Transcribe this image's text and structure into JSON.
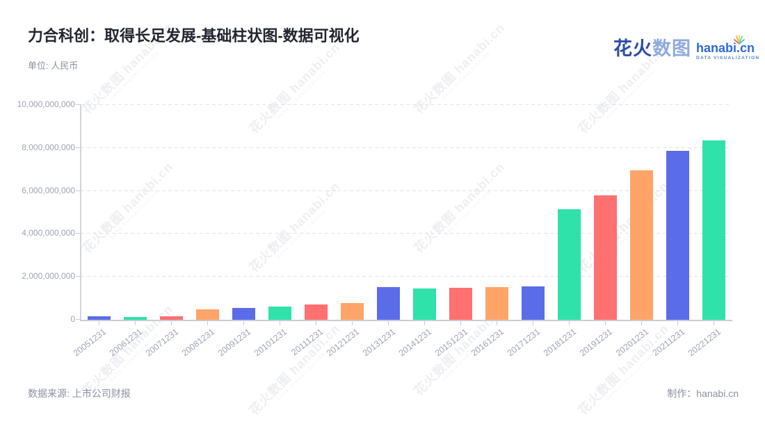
{
  "header": {
    "title": "力合科创：取得长足发展-基础柱状图-数据可视化",
    "unit_label": "单位: 人民币"
  },
  "logo": {
    "brand_cn_primary": "花火",
    "brand_cn_secondary": "数图",
    "brand_en": "hanabi.cn",
    "tagline": "DATA VISUALIZATION"
  },
  "watermark": {
    "text": "花火数图 hanabi.cn",
    "tagline": "DATA VISUALIZATION"
  },
  "footer": {
    "source_label": "数据来源: 上市公司财报",
    "credit_label": "制作：hanabi.cn"
  },
  "colors": {
    "bar_blue": "#5B6CE8",
    "bar_green": "#2EE2A9",
    "bar_red": "#FF7070",
    "bar_orange": "#FFA468",
    "brand_dark_blue": "#2B4DA6",
    "brand_light_blue": "#8FA9DD",
    "brand_en_blue": "#2D6BD9"
  },
  "chart_data": {
    "type": "bar",
    "title": "力合科创：取得长足发展-基础柱状图-数据可视化",
    "unit": "人民币",
    "categories": [
      "20051231",
      "20061231",
      "20071231",
      "20081231",
      "20091231",
      "20101231",
      "20111231",
      "20121231",
      "20131231",
      "20141231",
      "20151231",
      "20161231",
      "20171231",
      "20181231",
      "20191231",
      "20201231",
      "20211231",
      "20221231"
    ],
    "values": [
      150000000,
      130000000,
      160000000,
      470000000,
      540000000,
      610000000,
      710000000,
      780000000,
      1530000000,
      1470000000,
      1490000000,
      1510000000,
      1560000000,
      5150000000,
      5800000000,
      6950000000,
      7850000000,
      8350000000
    ],
    "ylim": [
      0,
      10000000000
    ],
    "xlabel": "",
    "ylabel": "",
    "y_tick_labels": [
      "0",
      "2,000,000,000",
      "4,000,000,000",
      "6,000,000,000",
      "8,000,000,000",
      "10,000,000,000"
    ],
    "grid": "horizontal-dashed",
    "legend_position": "none",
    "x_label_rotation_deg": -38,
    "bar_color_cycle": [
      "#5B6CE8",
      "#2EE2A9",
      "#FF7070",
      "#FFA468"
    ]
  }
}
